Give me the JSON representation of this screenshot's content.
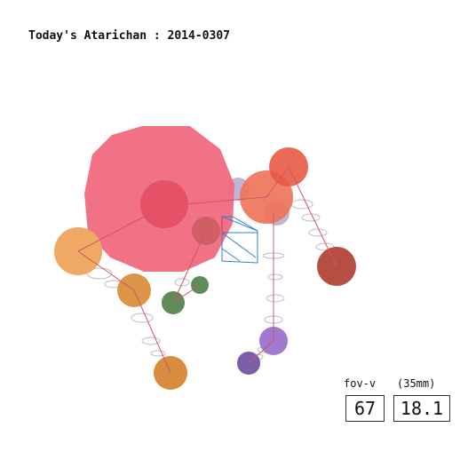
{
  "title": "Today's Atarichan : 2014-0307",
  "fov_label": "fov-v",
  "lens_label": "(35mm)",
  "fov_value": "67",
  "lens_value": "18.1",
  "colors": {
    "head": "#f06a7e",
    "orange": "#f0a865",
    "dark_orange": "#d88c3e",
    "red": "#e85a45",
    "dark_red": "#b74e42",
    "purple": "#a07ad0",
    "dark_purple": "#7a5ea8",
    "green": "#5f8c5a",
    "lavender": "#b6a8cf",
    "bone": "#d0556a",
    "ring": "#bdbdbd",
    "box": "#2f7fd6"
  }
}
